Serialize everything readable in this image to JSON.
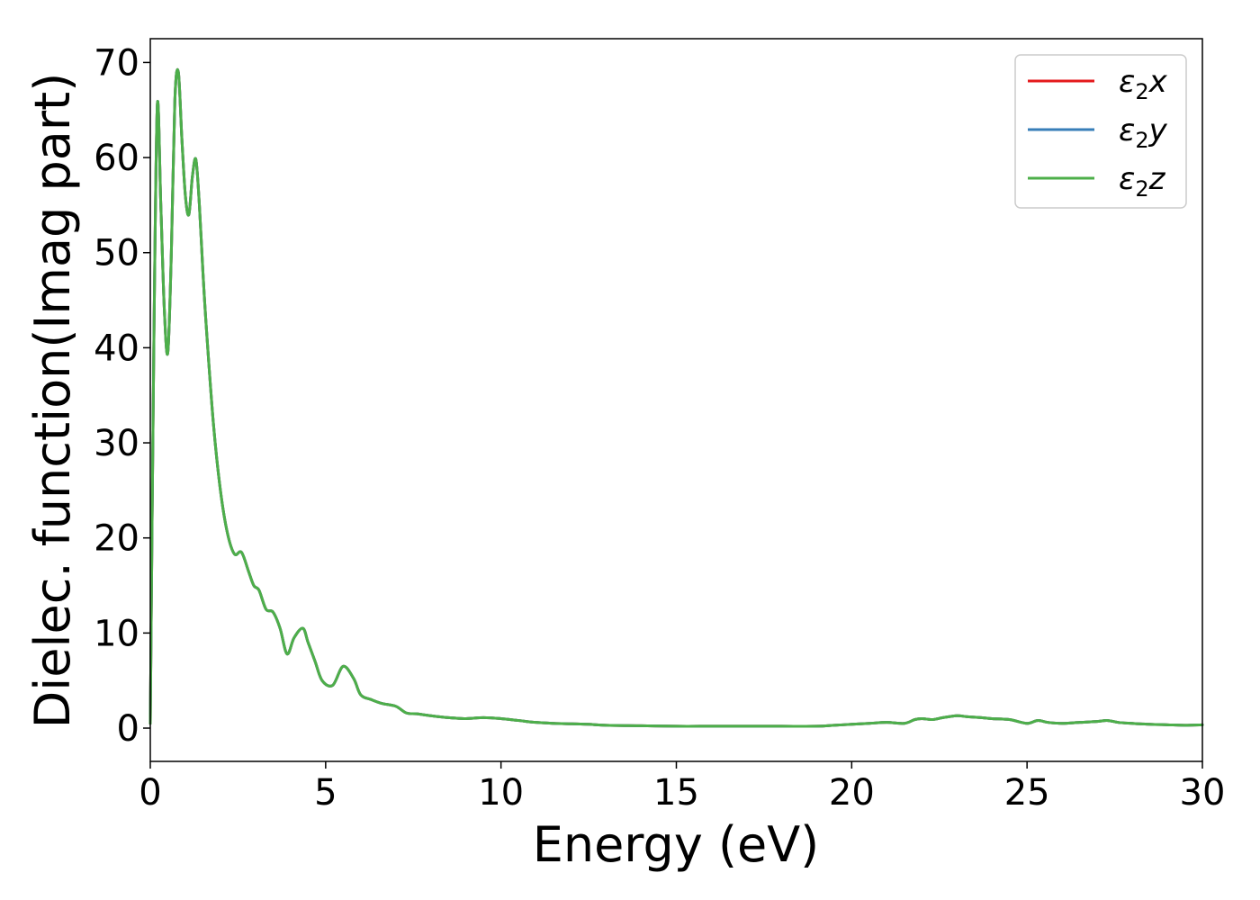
{
  "chart_data": {
    "type": "line",
    "title": "",
    "xlabel": "Energy (eV)",
    "ylabel": "Dielec. function(Imag part)",
    "xlim": [
      0,
      30
    ],
    "ylim": [
      -3.5,
      72.5
    ],
    "xticks": [
      0,
      5,
      10,
      15,
      20,
      25,
      30
    ],
    "yticks": [
      0,
      10,
      20,
      30,
      40,
      50,
      60,
      70
    ],
    "grid": false,
    "legend_position": "top-right",
    "x": [
      0,
      0.1,
      0.2,
      0.3,
      0.4,
      0.5,
      0.6,
      0.7,
      0.8,
      0.9,
      1.0,
      1.1,
      1.2,
      1.3,
      1.4,
      1.5,
      1.6,
      1.8,
      2.0,
      2.2,
      2.4,
      2.6,
      2.8,
      2.95,
      3.1,
      3.3,
      3.5,
      3.7,
      3.9,
      4.1,
      4.35,
      4.5,
      4.7,
      4.9,
      5.2,
      5.5,
      5.8,
      6.0,
      6.3,
      6.6,
      7.0,
      7.3,
      7.6,
      8.0,
      8.5,
      9.0,
      9.5,
      10.0,
      10.5,
      11.0,
      11.5,
      12.0,
      12.5,
      13.0,
      14.0,
      15.0,
      16.0,
      17.0,
      18.0,
      19.0,
      19.5,
      20.0,
      20.5,
      21.0,
      21.5,
      21.8,
      22.0,
      22.3,
      22.6,
      23.0,
      23.3,
      23.7,
      24.0,
      24.5,
      25.0,
      25.3,
      25.6,
      26.0,
      26.5,
      27.0,
      27.3,
      27.6,
      28.0,
      28.5,
      29.0,
      29.5,
      30.0
    ],
    "series": [
      {
        "name": "ε2x",
        "name_parts": {
          "symbol": "ε",
          "sub": "2",
          "axis": "x"
        },
        "color": "#e41a1c",
        "values": [
          0.5,
          40,
          65.5,
          55,
          44,
          39.5,
          50,
          66,
          69,
          62,
          56,
          54,
          58,
          59.8,
          55,
          48,
          42,
          32,
          25,
          20.5,
          18.3,
          18.5,
          16.5,
          15,
          14.5,
          12.5,
          12.2,
          10.5,
          7.8,
          9.5,
          10.5,
          9,
          7,
          5,
          4.5,
          6.5,
          5.2,
          3.5,
          3,
          2.6,
          2.3,
          1.6,
          1.5,
          1.3,
          1.1,
          1.0,
          1.1,
          1.0,
          0.8,
          0.6,
          0.5,
          0.45,
          0.4,
          0.3,
          0.25,
          0.2,
          0.2,
          0.2,
          0.2,
          0.2,
          0.3,
          0.4,
          0.5,
          0.6,
          0.5,
          0.9,
          1.0,
          0.9,
          1.1,
          1.3,
          1.2,
          1.1,
          1.0,
          0.9,
          0.5,
          0.8,
          0.6,
          0.5,
          0.6,
          0.7,
          0.8,
          0.6,
          0.5,
          0.4,
          0.35,
          0.3,
          0.35
        ]
      },
      {
        "name": "ε2y",
        "name_parts": {
          "symbol": "ε",
          "sub": "2",
          "axis": "y"
        },
        "color": "#377eb8",
        "values": [
          0.5,
          40,
          65.5,
          55,
          44,
          39.5,
          50,
          66,
          69,
          62,
          56,
          54,
          58,
          59.8,
          55,
          48,
          42,
          32,
          25,
          20.5,
          18.3,
          18.5,
          16.5,
          15,
          14.5,
          12.5,
          12.2,
          10.5,
          7.8,
          9.5,
          10.5,
          9,
          7,
          5,
          4.5,
          6.5,
          5.2,
          3.5,
          3,
          2.6,
          2.3,
          1.6,
          1.5,
          1.3,
          1.1,
          1.0,
          1.1,
          1.0,
          0.8,
          0.6,
          0.5,
          0.45,
          0.4,
          0.3,
          0.25,
          0.2,
          0.2,
          0.2,
          0.2,
          0.2,
          0.3,
          0.4,
          0.5,
          0.6,
          0.5,
          0.9,
          1.0,
          0.9,
          1.1,
          1.3,
          1.2,
          1.1,
          1.0,
          0.9,
          0.5,
          0.8,
          0.6,
          0.5,
          0.6,
          0.7,
          0.8,
          0.6,
          0.5,
          0.4,
          0.35,
          0.3,
          0.35
        ]
      },
      {
        "name": "ε2z",
        "name_parts": {
          "symbol": "ε",
          "sub": "2",
          "axis": "z"
        },
        "color": "#4daf4a",
        "values": [
          0.5,
          40,
          65.5,
          55,
          44,
          39.5,
          50,
          66,
          69,
          62,
          56,
          54,
          58,
          59.8,
          55,
          48,
          42,
          32,
          25,
          20.5,
          18.3,
          18.5,
          16.5,
          15,
          14.5,
          12.5,
          12.2,
          10.5,
          7.8,
          9.5,
          10.5,
          9,
          7,
          5,
          4.5,
          6.5,
          5.2,
          3.5,
          3,
          2.6,
          2.3,
          1.6,
          1.5,
          1.3,
          1.1,
          1.0,
          1.1,
          1.0,
          0.8,
          0.6,
          0.5,
          0.45,
          0.4,
          0.3,
          0.25,
          0.2,
          0.2,
          0.2,
          0.2,
          0.2,
          0.3,
          0.4,
          0.5,
          0.6,
          0.5,
          0.9,
          1.0,
          0.9,
          1.1,
          1.3,
          1.2,
          1.1,
          1.0,
          0.9,
          0.5,
          0.8,
          0.6,
          0.5,
          0.6,
          0.7,
          0.8,
          0.6,
          0.5,
          0.4,
          0.35,
          0.3,
          0.35
        ]
      }
    ]
  }
}
